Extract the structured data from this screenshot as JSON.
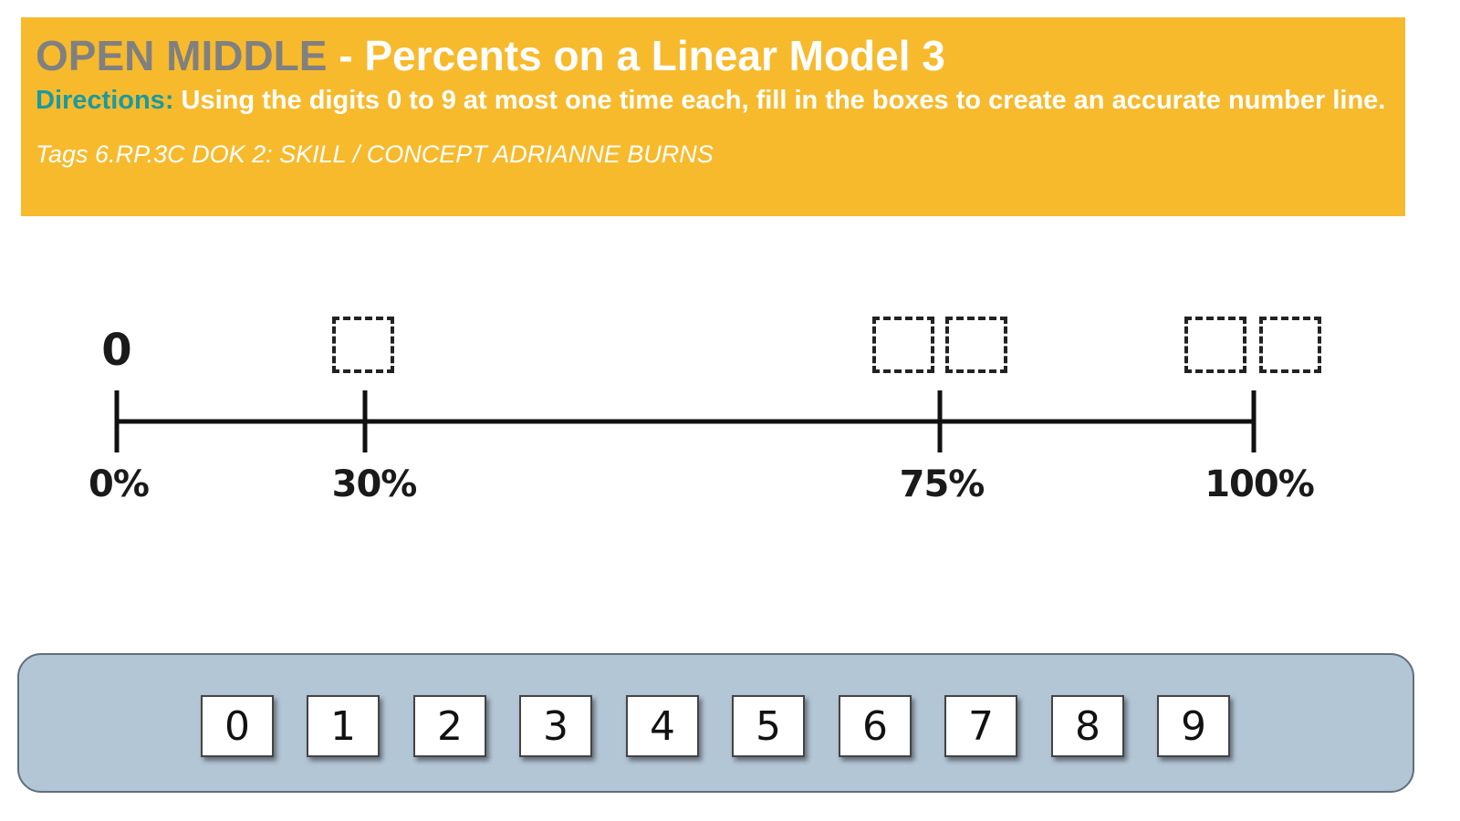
{
  "header": {
    "title_accent": "OPEN MIDDLE",
    "title_rest": " - Percents on a Linear Model 3",
    "directions_label": "Directions:",
    "directions_text": " Using the digits 0 to 9 at most one time each, fill in the boxes to create an accurate number line.",
    "tags": "Tags 6.RP.3C DOK 2: SKILL / CONCEPT  ADRIANNE BURNS"
  },
  "number_line": {
    "top_value": "0",
    "tick_labels": [
      "0%",
      "30%",
      "75%",
      "100%"
    ]
  },
  "digit_tiles": [
    "0",
    "1",
    "2",
    "3",
    "4",
    "5",
    "6",
    "7",
    "8",
    "9"
  ],
  "colors": {
    "header_bg": "#F7BA2D",
    "accent_gray": "#808080",
    "directions_teal": "#1A9AA0",
    "tray_bg": "#B3C6D6"
  }
}
